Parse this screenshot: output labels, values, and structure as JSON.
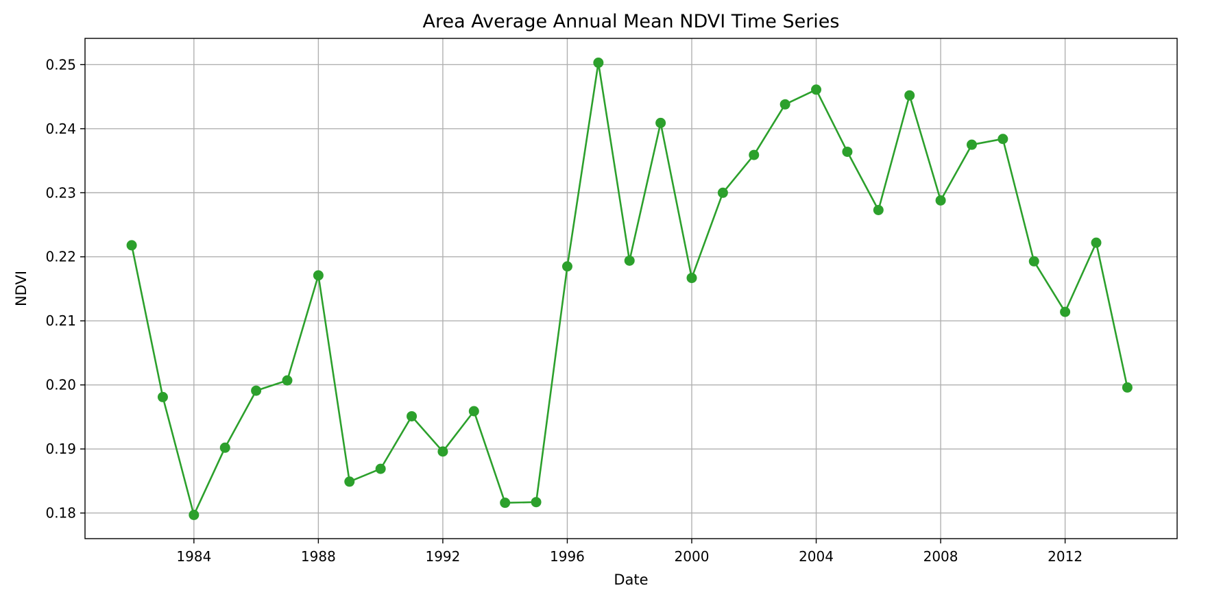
{
  "chart_data": {
    "type": "line",
    "title": "Area Average Annual Mean NDVI Time Series",
    "xlabel": "Date",
    "ylabel": "NDVI",
    "xlim": [
      1980.5,
      2015.6
    ],
    "ylim": [
      0.176,
      0.2541
    ],
    "x_ticks": [
      1984,
      1988,
      1992,
      1996,
      2000,
      2004,
      2008,
      2012
    ],
    "x_tick_labels": [
      "1984",
      "1988",
      "1992",
      "1996",
      "2000",
      "2004",
      "2008",
      "2012"
    ],
    "y_ticks": [
      0.18,
      0.19,
      0.2,
      0.21,
      0.22,
      0.23,
      0.24,
      0.25
    ],
    "y_tick_labels": [
      "0.18",
      "0.19",
      "0.20",
      "0.21",
      "0.22",
      "0.23",
      "0.24",
      "0.25"
    ],
    "grid": true,
    "color": "#2ca02c",
    "series": [
      {
        "x": [
          1982,
          1983,
          1984,
          1985,
          1986,
          1987,
          1988,
          1989,
          1990,
          1991,
          1992,
          1993,
          1994,
          1995,
          1996,
          1997,
          1998,
          1999,
          2000,
          2001,
          2002,
          2003,
          2004,
          2005,
          2006,
          2007,
          2008,
          2009,
          2010,
          2011,
          2012,
          2013,
          2014
        ],
        "y": [
          0.2218,
          0.1981,
          0.1797,
          0.1902,
          0.1991,
          0.2007,
          0.2171,
          0.1849,
          0.1869,
          0.1951,
          0.1896,
          0.1959,
          0.1816,
          0.1817,
          0.2185,
          0.2503,
          0.2194,
          0.2409,
          0.2167,
          0.23,
          0.2359,
          0.2438,
          0.2461,
          0.2364,
          0.2273,
          0.2452,
          0.2288,
          0.2375,
          0.2384,
          0.2193,
          0.2114,
          0.2222,
          0.1996
        ]
      }
    ]
  }
}
